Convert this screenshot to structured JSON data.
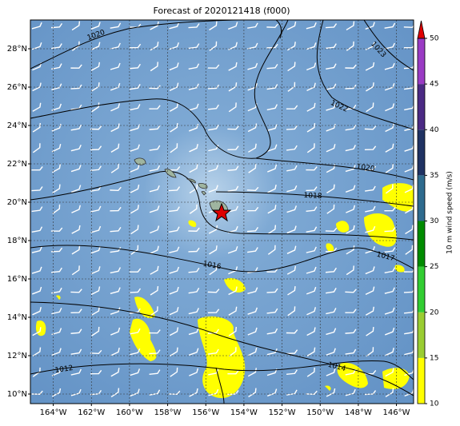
{
  "map": {
    "title": "Forecast of 2020121418 (f000)",
    "xlim": [
      -165.2,
      -145.1
    ],
    "ylim": [
      9.5,
      29.5
    ],
    "xticks": [
      {
        "value": -164,
        "label": "164°W"
      },
      {
        "value": -162,
        "label": "162°W"
      },
      {
        "value": -160,
        "label": "160°W"
      },
      {
        "value": -158,
        "label": "158°W"
      },
      {
        "value": -156,
        "label": "156°W"
      },
      {
        "value": -154,
        "label": "154°W"
      },
      {
        "value": -152,
        "label": "152°W"
      },
      {
        "value": -150,
        "label": "150°W"
      },
      {
        "value": -148,
        "label": "148°W"
      },
      {
        "value": -146,
        "label": "146°W"
      }
    ],
    "yticks": [
      {
        "value": 10,
        "label": "10°N"
      },
      {
        "value": 12,
        "label": "12°N"
      },
      {
        "value": 14,
        "label": "14°N"
      },
      {
        "value": 16,
        "label": "16°N"
      },
      {
        "value": 18,
        "label": "18°N"
      },
      {
        "value": 20,
        "label": "20°N"
      },
      {
        "value": 22,
        "label": "22°N"
      },
      {
        "value": 24,
        "label": "24°N"
      },
      {
        "value": 26,
        "label": "26°N"
      },
      {
        "value": 28,
        "label": "28°N"
      }
    ],
    "grid": true,
    "contour_labels": [
      1020,
      1023,
      1022,
      1020,
      1018,
      1017,
      1016,
      1012,
      1014
    ],
    "colorbar": {
      "label": "10 m wind speed (m/s)",
      "ticks": [
        10,
        15,
        20,
        25,
        30,
        35,
        40,
        45,
        50
      ],
      "colors": [
        "#ffff00",
        "#9acd32",
        "#32cd32",
        "#008b00",
        "#2e6b8e",
        "#1f3263",
        "#4b2a84",
        "#9a3bc4"
      ],
      "extend_color": "#e00000"
    }
  }
}
